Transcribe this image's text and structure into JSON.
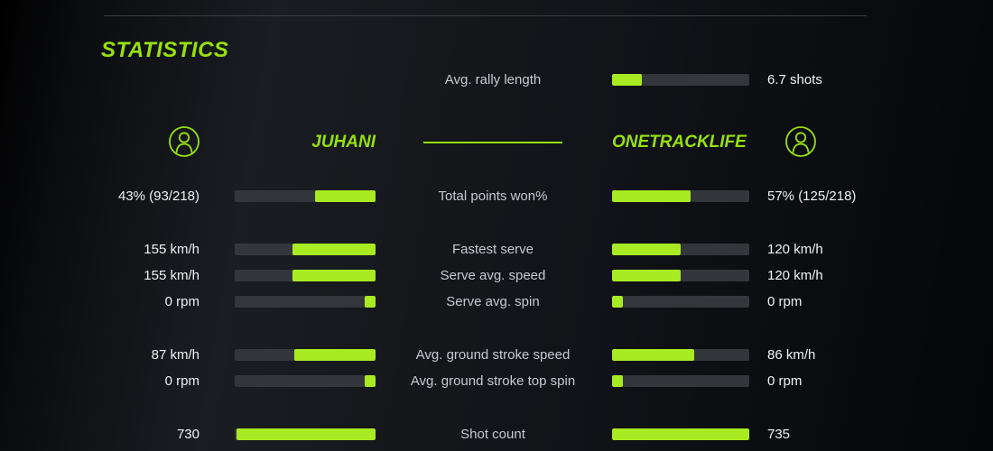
{
  "title": "STATISTICS",
  "colors": {
    "accent": "#97e00d",
    "bar_fill": "#a9eb22",
    "bar_track": "#33363a",
    "label_text": "#c6cad0",
    "value_text": "#f0f2f4"
  },
  "header": {
    "left_name": "JUHANI",
    "right_name": "ONETRACKLIFE",
    "left_avatar": "user-icon",
    "right_avatar": "user-icon"
  },
  "rally": {
    "label": "Avg. rally length",
    "value": "6.7 shots",
    "fill_pct": 22
  },
  "stats": [
    {
      "label": "Total points won%",
      "left_value": "43% (93/218)",
      "right_value": "57% (125/218)",
      "left_pct": 43,
      "right_pct": 57
    },
    {
      "label": "Fastest serve",
      "left_value": "155 km/h",
      "right_value": "120 km/h",
      "left_pct": 59,
      "right_pct": 50
    },
    {
      "label": "Serve avg. speed",
      "left_value": "155 km/h",
      "right_value": "120 km/h",
      "left_pct": 59,
      "right_pct": 50
    },
    {
      "label": "Serve avg. spin",
      "left_value": "0 rpm",
      "right_value": "0 rpm",
      "left_pct": 8,
      "right_pct": 8
    },
    {
      "label": "Avg. ground stroke speed",
      "left_value": "87 km/h",
      "right_value": "86 km/h",
      "left_pct": 58,
      "right_pct": 60
    },
    {
      "label": "Avg. ground stroke top spin",
      "left_value": "0 rpm",
      "right_value": "0 rpm",
      "left_pct": 8,
      "right_pct": 8
    },
    {
      "label": "Shot count",
      "left_value": "730",
      "right_value": "735",
      "left_pct": 99,
      "right_pct": 100
    }
  ]
}
